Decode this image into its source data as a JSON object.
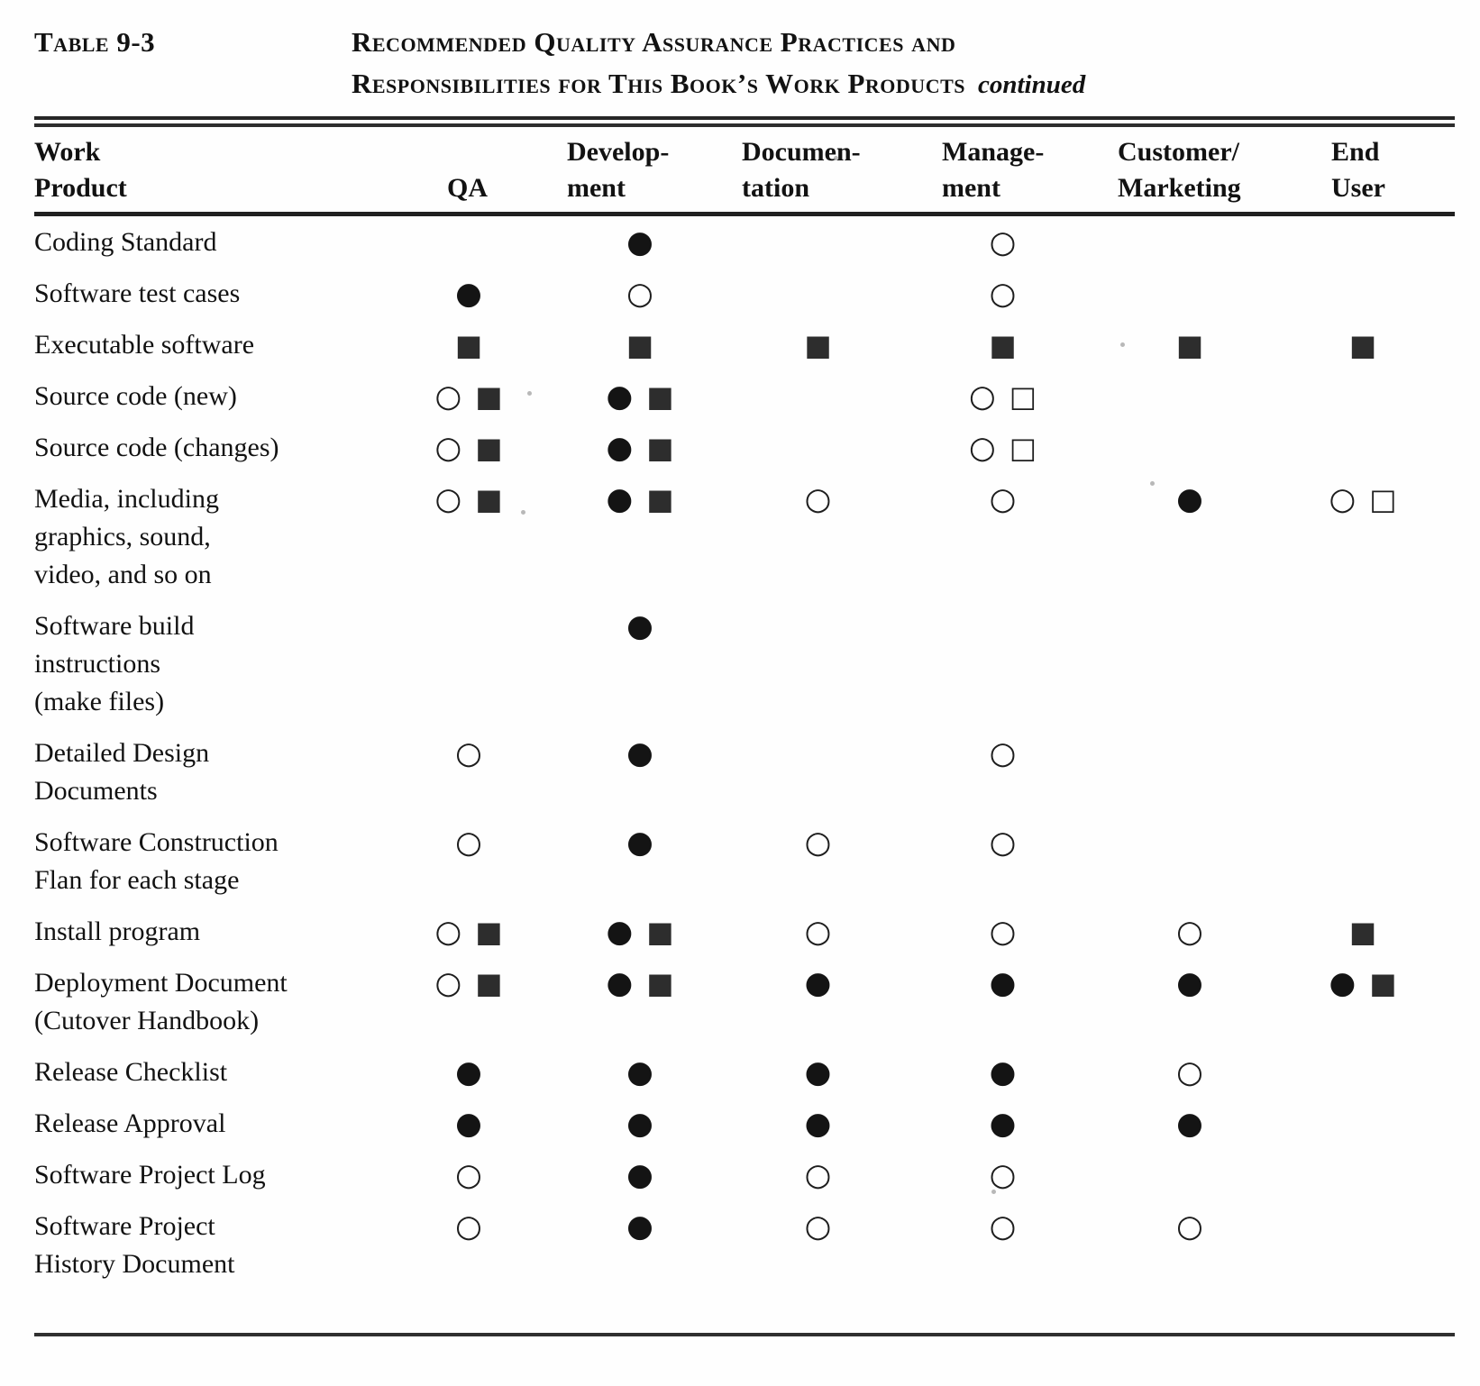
{
  "page": {
    "label": "Table 9-3",
    "title_line1": "Recommended Quality Assurance Practices and",
    "title_line2": "Responsibilities for This Book’s Work Products",
    "continued": "continued"
  },
  "table": {
    "symbol_glyphs": {
      "filled-circle": "●",
      "open-circle": "○",
      "filled-square": "■",
      "open-square": "□"
    },
    "columns": [
      {
        "key": "work_product",
        "lines": [
          "Work",
          "Product"
        ]
      },
      {
        "key": "qa",
        "lines": [
          "QA"
        ]
      },
      {
        "key": "development",
        "lines": [
          "Develop-",
          "ment"
        ]
      },
      {
        "key": "documentation",
        "lines": [
          "Documen-",
          "tation"
        ]
      },
      {
        "key": "management",
        "lines": [
          "Manage-",
          "ment"
        ]
      },
      {
        "key": "customer_marketing",
        "lines": [
          "Customer/",
          "Marketing"
        ]
      },
      {
        "key": "end_user",
        "lines": [
          "End",
          "User"
        ]
      }
    ],
    "rows": [
      {
        "label_lines": [
          "Coding Standard"
        ],
        "cells": {
          "qa": [],
          "development": [
            "filled-circle"
          ],
          "documentation": [],
          "management": [
            "open-circle"
          ],
          "customer_marketing": [],
          "end_user": []
        }
      },
      {
        "label_lines": [
          "Software test cases"
        ],
        "cells": {
          "qa": [
            "filled-circle"
          ],
          "development": [
            "open-circle"
          ],
          "documentation": [],
          "management": [
            "open-circle"
          ],
          "customer_marketing": [],
          "end_user": []
        }
      },
      {
        "label_lines": [
          "Executable software"
        ],
        "cells": {
          "qa": [
            "filled-square"
          ],
          "development": [
            "filled-square"
          ],
          "documentation": [
            "filled-square"
          ],
          "management": [
            "filled-square"
          ],
          "customer_marketing": [
            "filled-square"
          ],
          "end_user": [
            "filled-square"
          ]
        }
      },
      {
        "label_lines": [
          "Source code (new)"
        ],
        "cells": {
          "qa": [
            "open-circle",
            "filled-square"
          ],
          "development": [
            "filled-circle",
            "filled-square"
          ],
          "documentation": [],
          "management": [
            "open-circle",
            "open-square"
          ],
          "customer_marketing": [],
          "end_user": []
        }
      },
      {
        "label_lines": [
          "Source code (changes)"
        ],
        "cells": {
          "qa": [
            "open-circle",
            "filled-square"
          ],
          "development": [
            "filled-circle",
            "filled-square"
          ],
          "documentation": [],
          "management": [
            "open-circle",
            "open-square"
          ],
          "customer_marketing": [],
          "end_user": []
        }
      },
      {
        "label_lines": [
          "Media, including",
          "graphics, sound,",
          "video, and so on"
        ],
        "cells": {
          "qa": [
            "open-circle",
            "filled-square"
          ],
          "development": [
            "filled-circle",
            "filled-square"
          ],
          "documentation": [
            "open-circle"
          ],
          "management": [
            "open-circle"
          ],
          "customer_marketing": [
            "filled-circle"
          ],
          "end_user": [
            "open-circle",
            "open-square"
          ]
        }
      },
      {
        "label_lines": [
          "Software build",
          "instructions",
          "(make files)"
        ],
        "cells": {
          "qa": [],
          "development": [
            "filled-circle"
          ],
          "documentation": [],
          "management": [],
          "customer_marketing": [],
          "end_user": []
        }
      },
      {
        "label_lines": [
          "Detailed Design",
          "Documents"
        ],
        "cells": {
          "qa": [
            "open-circle"
          ],
          "development": [
            "filled-circle"
          ],
          "documentation": [],
          "management": [
            "open-circle"
          ],
          "customer_marketing": [],
          "end_user": []
        }
      },
      {
        "label_lines": [
          "Software Construction",
          "Flan for each stage"
        ],
        "cells": {
          "qa": [
            "open-circle"
          ],
          "development": [
            "filled-circle"
          ],
          "documentation": [
            "open-circle"
          ],
          "management": [
            "open-circle"
          ],
          "customer_marketing": [],
          "end_user": []
        }
      },
      {
        "label_lines": [
          "Install program"
        ],
        "cells": {
          "qa": [
            "open-circle",
            "filled-square"
          ],
          "development": [
            "filled-circle",
            "filled-square"
          ],
          "documentation": [
            "open-circle"
          ],
          "management": [
            "open-circle"
          ],
          "customer_marketing": [
            "open-circle"
          ],
          "end_user": [
            "filled-square"
          ]
        }
      },
      {
        "label_lines": [
          "Deployment Document",
          "(Cutover Handbook)"
        ],
        "cells": {
          "qa": [
            "open-circle",
            "filled-square"
          ],
          "development": [
            "filled-circle",
            "filled-square"
          ],
          "documentation": [
            "filled-circle"
          ],
          "management": [
            "filled-circle"
          ],
          "customer_marketing": [
            "filled-circle"
          ],
          "end_user": [
            "filled-circle",
            "filled-square"
          ]
        }
      },
      {
        "label_lines": [
          "Release Checklist"
        ],
        "cells": {
          "qa": [
            "filled-circle"
          ],
          "development": [
            "filled-circle"
          ],
          "documentation": [
            "filled-circle"
          ],
          "management": [
            "filled-circle"
          ],
          "customer_marketing": [
            "open-circle"
          ],
          "end_user": []
        }
      },
      {
        "label_lines": [
          "Release Approval"
        ],
        "cells": {
          "qa": [
            "filled-circle"
          ],
          "development": [
            "filled-circle"
          ],
          "documentation": [
            "filled-circle"
          ],
          "management": [
            "filled-circle"
          ],
          "customer_marketing": [
            "filled-circle"
          ],
          "end_user": []
        }
      },
      {
        "label_lines": [
          "Software Project Log"
        ],
        "cells": {
          "qa": [
            "open-circle"
          ],
          "development": [
            "filled-circle"
          ],
          "documentation": [
            "open-circle"
          ],
          "management": [
            "open-circle"
          ],
          "customer_marketing": [],
          "end_user": []
        }
      },
      {
        "label_lines": [
          "Software Project",
          "History Document"
        ],
        "cells": {
          "qa": [
            "open-circle"
          ],
          "development": [
            "filled-circle"
          ],
          "documentation": [
            "open-circle"
          ],
          "management": [
            "open-circle"
          ],
          "customer_marketing": [
            "open-circle"
          ],
          "end_user": []
        }
      }
    ]
  }
}
